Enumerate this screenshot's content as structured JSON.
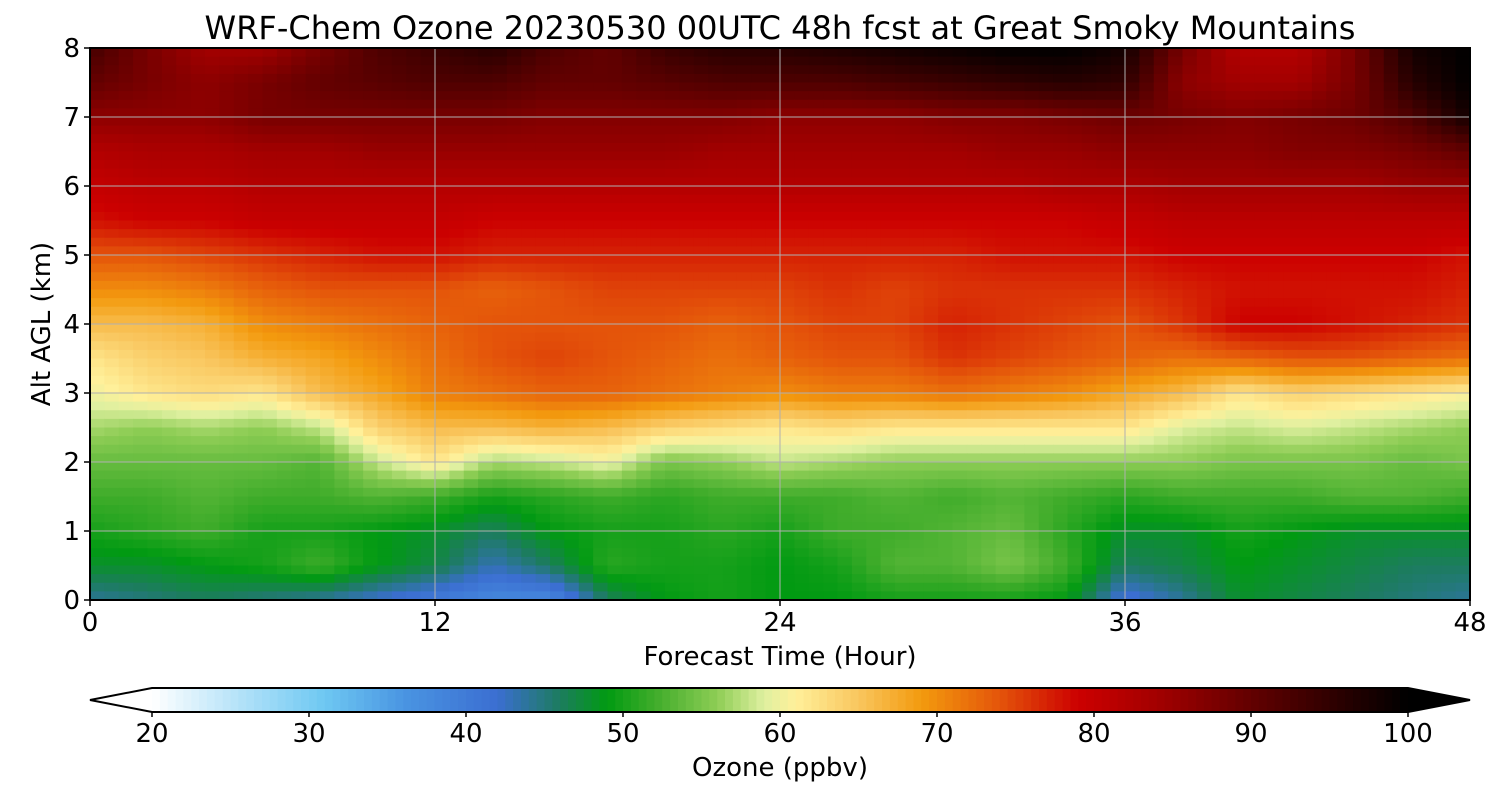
{
  "chart_data": {
    "type": "heatmap",
    "title": "WRF-Chem Ozone  20230530 00UTC 48h fcst at Great Smoky Mountains",
    "xlabel": "Forecast Time (Hour)",
    "ylabel": "Alt AGL (km)",
    "xlim": [
      0,
      48
    ],
    "ylim": [
      0,
      8
    ],
    "x_ticks": [
      0,
      12,
      24,
      36,
      48
    ],
    "y_ticks": [
      0,
      1,
      2,
      3,
      4,
      5,
      6,
      7,
      8
    ],
    "grid": true,
    "x_hours": [
      0,
      2,
      4,
      6,
      8,
      10,
      12,
      14,
      16,
      18,
      20,
      22,
      24,
      26,
      28,
      30,
      32,
      34,
      36,
      38,
      40,
      42,
      44,
      46,
      48
    ],
    "y_levels_km": [
      0,
      0.5,
      1,
      1.5,
      2,
      2.5,
      3,
      3.5,
      4,
      4.5,
      5,
      5.5,
      6,
      6.5,
      7,
      7.5,
      8
    ],
    "values_ppbv_by_level": [
      [
        44,
        45,
        46,
        45,
        44,
        42,
        40,
        38,
        38,
        46,
        49,
        50,
        49,
        49,
        50,
        50,
        50,
        49,
        41,
        44,
        48,
        47,
        46,
        45,
        44
      ],
      [
        48,
        48,
        49,
        50,
        52,
        49,
        47,
        43,
        46,
        51,
        50,
        50,
        49,
        50,
        53,
        53,
        55,
        52,
        46,
        47,
        49,
        48,
        47,
        46,
        46
      ],
      [
        50,
        51,
        52,
        50,
        50,
        49,
        48,
        46,
        49,
        50,
        50,
        51,
        50,
        52,
        52,
        53,
        54,
        51,
        48,
        48,
        50,
        49,
        48,
        48,
        48
      ],
      [
        52,
        52,
        53,
        52,
        52,
        53,
        52,
        50,
        51,
        52,
        51,
        52,
        52,
        52,
        53,
        52,
        53,
        52,
        51,
        52,
        52,
        52,
        53,
        53,
        52
      ],
      [
        54,
        54,
        54,
        54,
        53,
        58,
        62,
        57,
        58,
        60,
        55,
        56,
        58,
        57,
        56,
        56,
        56,
        56,
        56,
        56,
        55,
        55,
        55,
        54,
        55
      ],
      [
        57,
        56,
        57,
        56,
        58,
        64,
        66,
        66,
        67,
        66,
        64,
        63,
        62,
        63,
        62,
        62,
        62,
        62,
        62,
        59,
        58,
        59,
        58,
        57,
        56
      ],
      [
        60,
        62,
        63,
        62,
        66,
        68,
        71,
        72,
        73,
        73,
        72,
        71,
        70,
        71,
        71,
        72,
        71,
        70,
        68,
        66,
        62,
        64,
        63,
        62,
        61
      ],
      [
        62,
        64,
        65,
        67,
        68,
        70,
        72,
        74,
        75,
        74,
        73,
        72,
        73,
        74,
        74,
        76,
        75,
        74,
        73,
        72,
        73,
        74,
        74,
        73,
        72
      ],
      [
        66,
        66,
        67,
        70,
        71,
        72,
        73,
        74,
        74,
        74,
        74,
        73,
        74,
        75,
        75,
        77,
        76,
        75,
        74,
        76,
        79,
        79,
        78,
        77,
        76
      ],
      [
        70,
        70,
        71,
        73,
        74,
        74,
        74,
        73,
        74,
        75,
        75,
        75,
        75,
        76,
        75,
        76,
        76,
        76,
        76,
        77,
        78,
        78,
        78,
        78,
        77
      ],
      [
        74,
        74,
        75,
        76,
        77,
        78,
        78,
        77,
        77,
        77,
        77,
        77,
        77,
        77,
        77,
        77,
        78,
        78,
        78,
        79,
        79,
        79,
        79,
        79,
        78
      ],
      [
        78,
        79,
        79,
        80,
        80,
        80,
        80,
        79,
        79,
        79,
        79,
        79,
        79,
        79,
        79,
        79,
        79,
        79,
        80,
        81,
        81,
        81,
        81,
        81,
        81
      ],
      [
        80,
        81,
        81,
        82,
        82,
        82,
        82,
        82,
        82,
        82,
        82,
        82,
        82,
        82,
        82,
        82,
        82,
        83,
        83,
        84,
        84,
        84,
        84,
        85,
        85
      ],
      [
        82,
        83,
        83,
        84,
        84,
        85,
        85,
        85,
        85,
        85,
        85,
        84,
        84,
        84,
        84,
        84,
        85,
        85,
        86,
        86,
        86,
        87,
        87,
        88,
        90
      ],
      [
        86,
        86,
        86,
        88,
        88,
        88,
        88,
        88,
        87,
        87,
        87,
        87,
        86,
        86,
        86,
        87,
        87,
        88,
        89,
        88,
        87,
        88,
        89,
        92,
        98
      ],
      [
        90,
        88,
        86,
        88,
        90,
        91,
        92,
        92,
        90,
        90,
        91,
        92,
        92,
        92,
        93,
        94,
        95,
        96,
        95,
        86,
        84,
        84,
        88,
        96,
        100
      ],
      [
        93,
        88,
        84,
        84,
        88,
        92,
        94,
        96,
        92,
        90,
        94,
        96,
        96,
        97,
        98,
        99,
        100,
        100,
        98,
        88,
        82,
        82,
        88,
        98,
        100
      ]
    ],
    "colorbar": {
      "label": "Ozone  (ppbv)",
      "min": 20,
      "max": 100,
      "ticks": [
        20,
        30,
        40,
        50,
        60,
        70,
        80,
        90,
        100
      ],
      "extend": "both",
      "stops": [
        {
          "v": 20,
          "c": "#ffffff"
        },
        {
          "v": 26,
          "c": "#aee0f8"
        },
        {
          "v": 31,
          "c": "#6ec8f2"
        },
        {
          "v": 36,
          "c": "#4a95e2"
        },
        {
          "v": 42,
          "c": "#3b6ed1"
        },
        {
          "v": 46,
          "c": "#1c7c5e"
        },
        {
          "v": 49,
          "c": "#019a12"
        },
        {
          "v": 52,
          "c": "#3fac2a"
        },
        {
          "v": 56,
          "c": "#8ecd55"
        },
        {
          "v": 59,
          "c": "#dff0a0"
        },
        {
          "v": 61,
          "c": "#fff09a"
        },
        {
          "v": 65,
          "c": "#f9c65e"
        },
        {
          "v": 69,
          "c": "#f39a0e"
        },
        {
          "v": 74,
          "c": "#e4540a"
        },
        {
          "v": 79,
          "c": "#cc0000"
        },
        {
          "v": 84,
          "c": "#a30000"
        },
        {
          "v": 89,
          "c": "#6d0000"
        },
        {
          "v": 94,
          "c": "#3a0000"
        },
        {
          "v": 100,
          "c": "#000000"
        }
      ]
    }
  }
}
